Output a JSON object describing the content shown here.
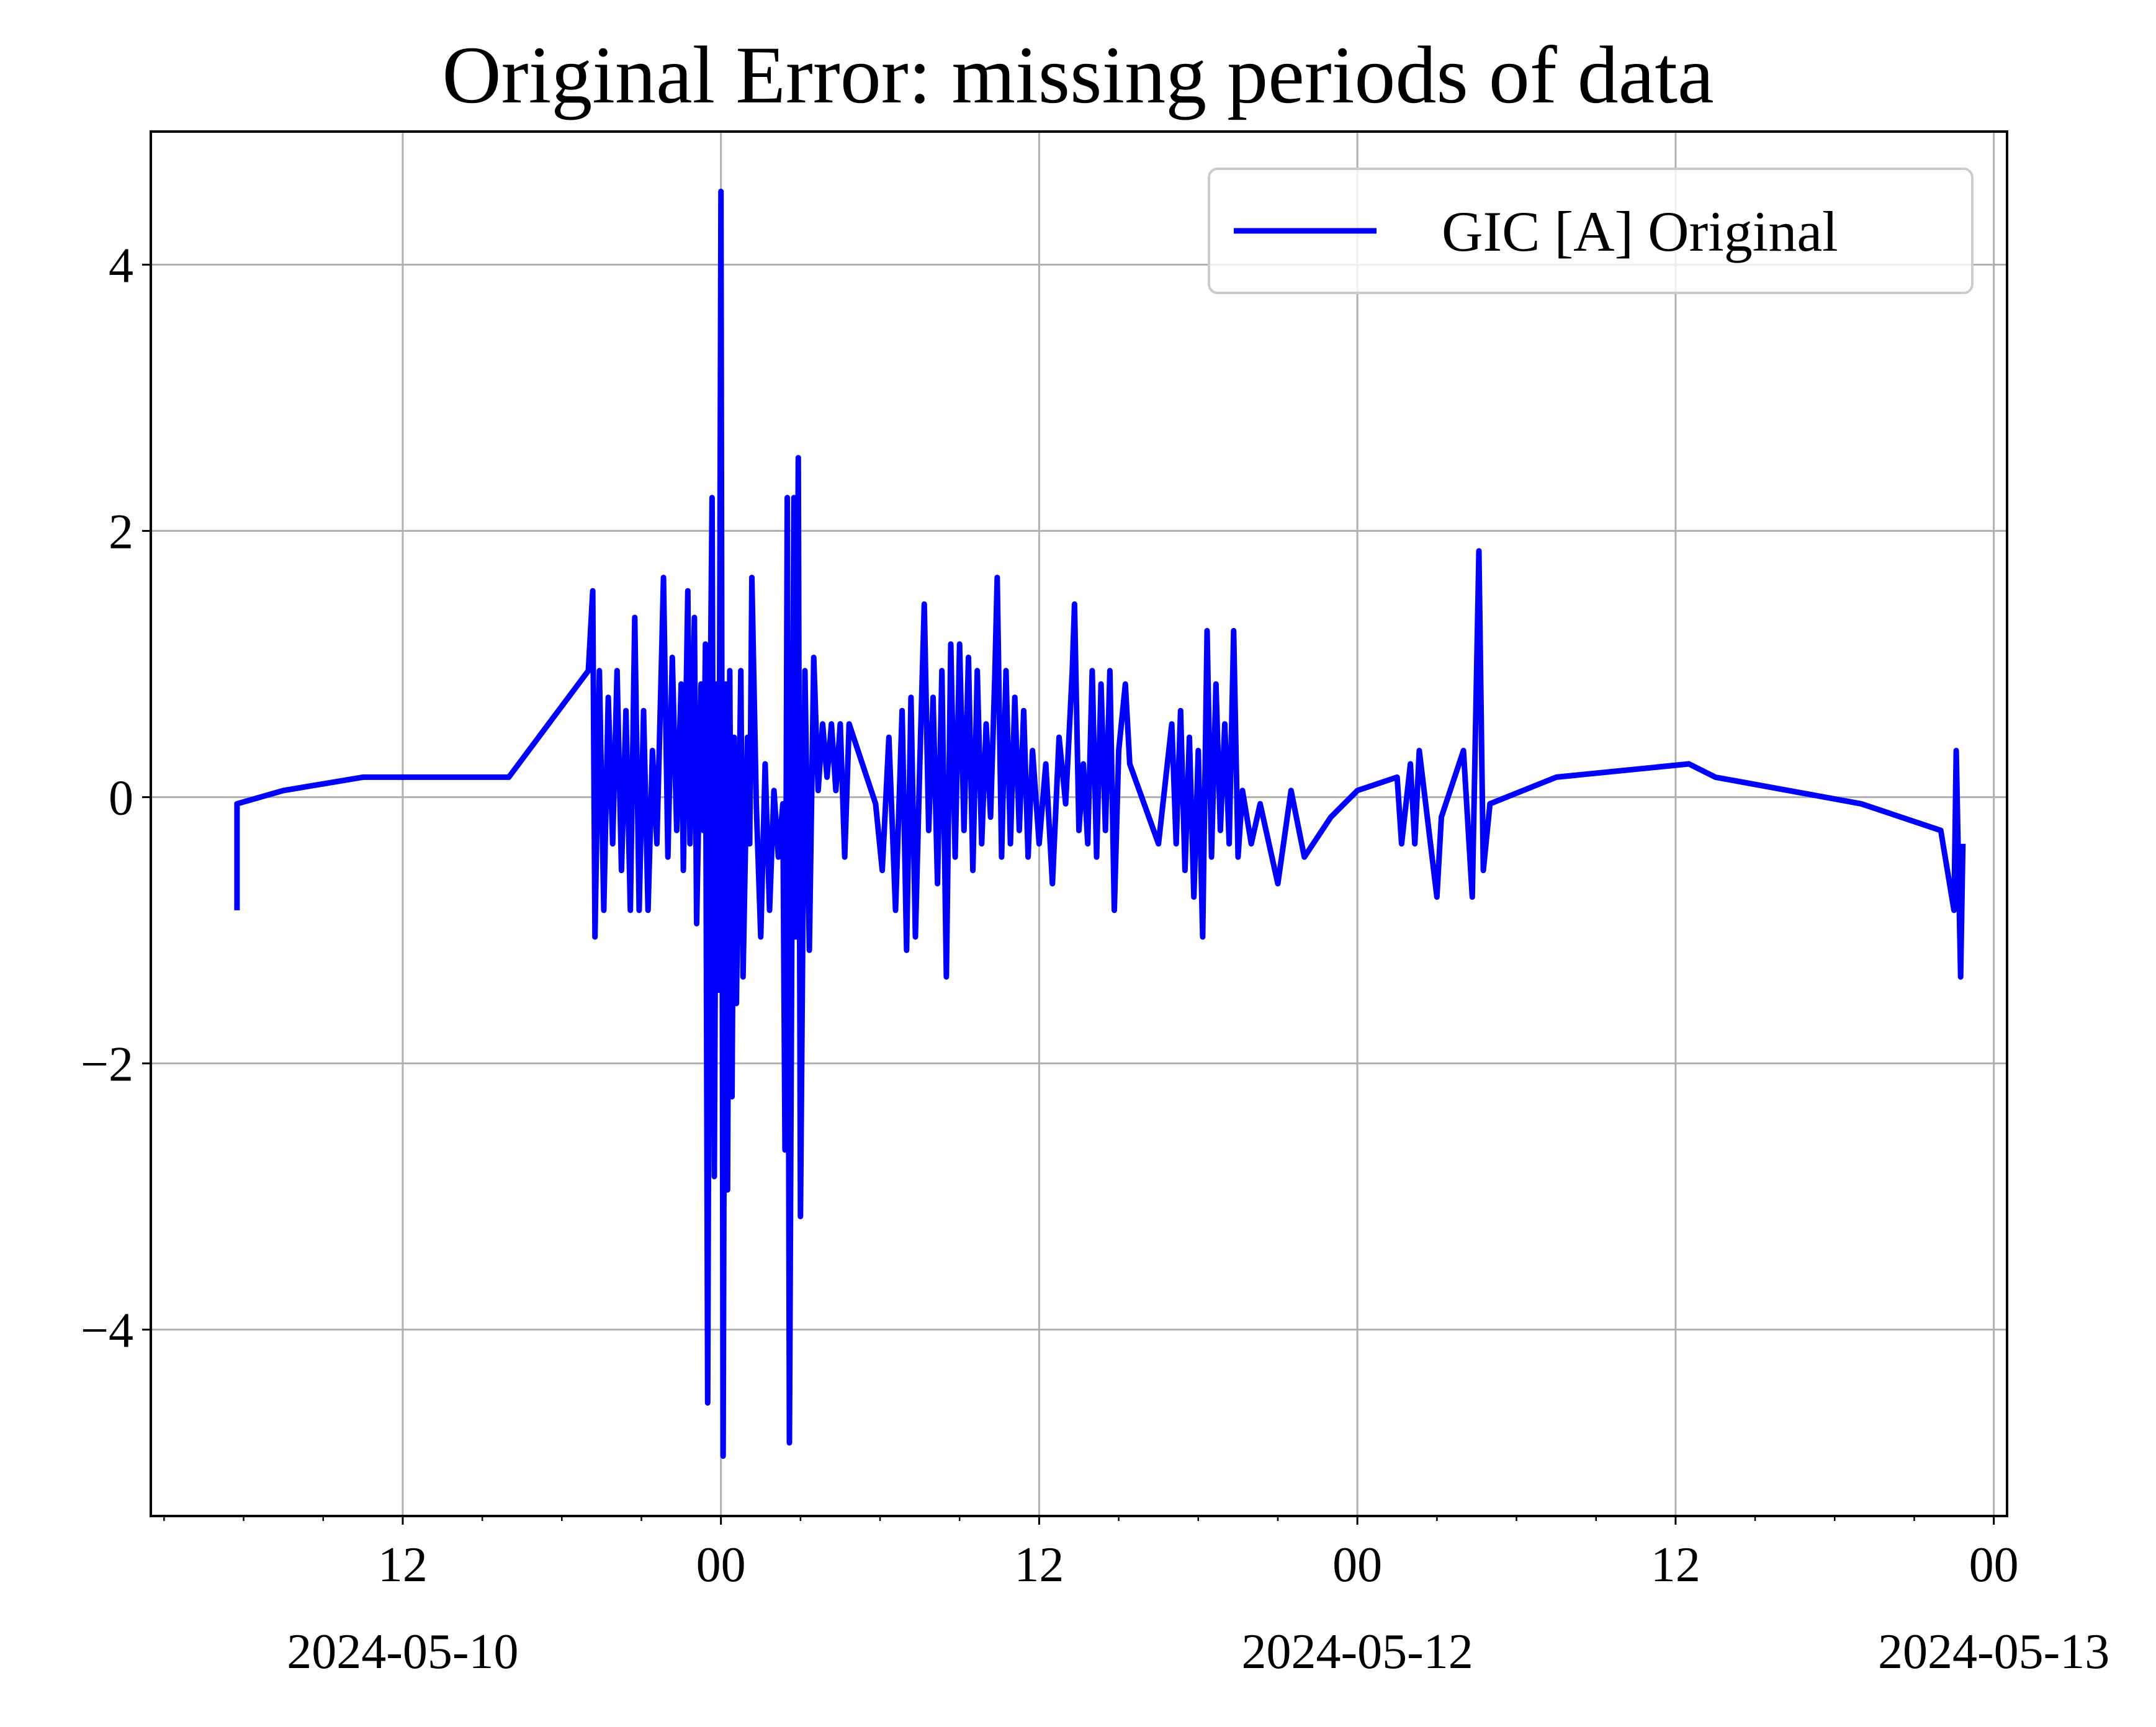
{
  "chart_data": {
    "type": "line",
    "title": "Original Error: missing periods of data",
    "xlabel": "",
    "ylabel": "",
    "x_scale": "time",
    "xlim": [
      "2024-05-10 02:30",
      "2024-05-13 00:30"
    ],
    "ylim": [
      -5.4,
      5.0
    ],
    "grid": true,
    "legend": {
      "placement": "top-right",
      "entries": [
        "GIC [A] Original"
      ]
    },
    "x_ticks": [
      {
        "t": "2024-05-10 12:00",
        "label": "12",
        "date_label": "2024-05-10"
      },
      {
        "t": "2024-05-11 00:00",
        "label": "00",
        "date_label": ""
      },
      {
        "t": "2024-05-11 12:00",
        "label": "12",
        "date_label": ""
      },
      {
        "t": "2024-05-12 00:00",
        "label": "00",
        "date_label": "2024-05-12"
      },
      {
        "t": "2024-05-12 12:00",
        "label": "12",
        "date_label": ""
      },
      {
        "t": "2024-05-13 00:00",
        "label": "00",
        "date_label": "2024-05-13"
      }
    ],
    "y_ticks": [
      {
        "v": -4,
        "label": "−4"
      },
      {
        "v": -2,
        "label": "−2"
      },
      {
        "v": 0,
        "label": "0"
      },
      {
        "v": 2,
        "label": "2"
      },
      {
        "v": 4,
        "label": "4"
      }
    ],
    "series": [
      {
        "name": "GIC [A] Original",
        "color": "#0000ff",
        "points": [
          [
            "2024-05-10 05:45",
            -0.85
          ],
          [
            "2024-05-10 05:45",
            -0.05
          ],
          [
            "2024-05-10 07:30",
            0.05
          ],
          [
            "2024-05-10 10:30",
            0.15
          ],
          [
            "2024-05-10 16:00",
            0.15
          ],
          [
            "2024-05-10 19:00",
            0.95
          ],
          [
            "2024-05-10 19:10",
            1.55
          ],
          [
            "2024-05-10 19:15",
            -1.05
          ],
          [
            "2024-05-10 19:25",
            0.95
          ],
          [
            "2024-05-10 19:35",
            -0.85
          ],
          [
            "2024-05-10 19:45",
            0.75
          ],
          [
            "2024-05-10 19:55",
            -0.35
          ],
          [
            "2024-05-10 20:05",
            0.95
          ],
          [
            "2024-05-10 20:15",
            -0.55
          ],
          [
            "2024-05-10 20:25",
            0.65
          ],
          [
            "2024-05-10 20:35",
            -0.85
          ],
          [
            "2024-05-10 20:45",
            1.35
          ],
          [
            "2024-05-10 20:55",
            -0.85
          ],
          [
            "2024-05-10 21:05",
            0.65
          ],
          [
            "2024-05-10 21:15",
            -0.85
          ],
          [
            "2024-05-10 21:25",
            0.35
          ],
          [
            "2024-05-10 21:35",
            -0.35
          ],
          [
            "2024-05-10 21:45",
            0.95
          ],
          [
            "2024-05-10 21:50",
            1.65
          ],
          [
            "2024-05-10 22:00",
            -0.45
          ],
          [
            "2024-05-10 22:10",
            1.05
          ],
          [
            "2024-05-10 22:20",
            -0.25
          ],
          [
            "2024-05-10 22:30",
            0.85
          ],
          [
            "2024-05-10 22:35",
            -0.55
          ],
          [
            "2024-05-10 22:45",
            1.55
          ],
          [
            "2024-05-10 22:50",
            -0.35
          ],
          [
            "2024-05-10 23:00",
            1.35
          ],
          [
            "2024-05-10 23:05",
            -0.95
          ],
          [
            "2024-05-10 23:15",
            0.85
          ],
          [
            "2024-05-10 23:20",
            -0.25
          ],
          [
            "2024-05-10 23:25",
            1.15
          ],
          [
            "2024-05-10 23:30",
            -4.55
          ],
          [
            "2024-05-10 23:35",
            0.45
          ],
          [
            "2024-05-10 23:40",
            2.25
          ],
          [
            "2024-05-10 23:45",
            -2.85
          ],
          [
            "2024-05-10 23:50",
            0.85
          ],
          [
            "2024-05-10 23:55",
            -1.45
          ],
          [
            "2024-05-11 00:00",
            4.55
          ],
          [
            "2024-05-11 00:05",
            -4.95
          ],
          [
            "2024-05-11 00:10",
            0.85
          ],
          [
            "2024-05-11 00:15",
            -2.95
          ],
          [
            "2024-05-11 00:20",
            0.95
          ],
          [
            "2024-05-11 00:25",
            -2.25
          ],
          [
            "2024-05-11 00:30",
            0.45
          ],
          [
            "2024-05-11 00:35",
            -1.55
          ],
          [
            "2024-05-11 00:45",
            0.95
          ],
          [
            "2024-05-11 00:50",
            -1.35
          ],
          [
            "2024-05-11 01:00",
            0.45
          ],
          [
            "2024-05-11 01:05",
            -0.35
          ],
          [
            "2024-05-11 01:10",
            1.65
          ],
          [
            "2024-05-11 01:20",
            -0.05
          ],
          [
            "2024-05-11 01:30",
            -1.05
          ],
          [
            "2024-05-11 01:40",
            0.25
          ],
          [
            "2024-05-11 01:50",
            -0.85
          ],
          [
            "2024-05-11 02:00",
            0.05
          ],
          [
            "2024-05-11 02:10",
            -0.45
          ],
          [
            "2024-05-11 02:20",
            -0.05
          ],
          [
            "2024-05-11 02:25",
            -2.65
          ],
          [
            "2024-05-11 02:30",
            2.25
          ],
          [
            "2024-05-11 02:35",
            -4.85
          ],
          [
            "2024-05-11 02:45",
            2.25
          ],
          [
            "2024-05-11 02:50",
            -1.05
          ],
          [
            "2024-05-11 02:55",
            2.55
          ],
          [
            "2024-05-11 03:00",
            -3.15
          ],
          [
            "2024-05-11 03:10",
            0.95
          ],
          [
            "2024-05-11 03:20",
            -1.15
          ],
          [
            "2024-05-11 03:30",
            1.05
          ],
          [
            "2024-05-11 03:40",
            0.05
          ],
          [
            "2024-05-11 03:50",
            0.55
          ],
          [
            "2024-05-11 04:00",
            0.15
          ],
          [
            "2024-05-11 04:10",
            0.55
          ],
          [
            "2024-05-11 04:20",
            0.05
          ],
          [
            "2024-05-11 04:30",
            0.55
          ],
          [
            "2024-05-11 04:40",
            -0.45
          ],
          [
            "2024-05-11 04:50",
            0.55
          ],
          [
            "2024-05-11 05:50",
            -0.05
          ],
          [
            "2024-05-11 06:05",
            -0.55
          ],
          [
            "2024-05-11 06:20",
            0.45
          ],
          [
            "2024-05-11 06:35",
            -0.85
          ],
          [
            "2024-05-11 06:50",
            0.65
          ],
          [
            "2024-05-11 07:00",
            -1.15
          ],
          [
            "2024-05-11 07:10",
            0.75
          ],
          [
            "2024-05-11 07:20",
            -1.05
          ],
          [
            "2024-05-11 07:30",
            0.25
          ],
          [
            "2024-05-11 07:40",
            1.45
          ],
          [
            "2024-05-11 07:50",
            -0.25
          ],
          [
            "2024-05-11 08:00",
            0.75
          ],
          [
            "2024-05-11 08:10",
            -0.65
          ],
          [
            "2024-05-11 08:20",
            0.95
          ],
          [
            "2024-05-11 08:30",
            -1.35
          ],
          [
            "2024-05-11 08:40",
            1.15
          ],
          [
            "2024-05-11 08:50",
            -0.45
          ],
          [
            "2024-05-11 09:00",
            1.15
          ],
          [
            "2024-05-11 09:10",
            -0.25
          ],
          [
            "2024-05-11 09:20",
            1.05
          ],
          [
            "2024-05-11 09:30",
            -0.55
          ],
          [
            "2024-05-11 09:40",
            0.95
          ],
          [
            "2024-05-11 09:50",
            -0.35
          ],
          [
            "2024-05-11 10:00",
            0.55
          ],
          [
            "2024-05-11 10:10",
            -0.15
          ],
          [
            "2024-05-11 10:20",
            0.95
          ],
          [
            "2024-05-11 10:25",
            1.65
          ],
          [
            "2024-05-11 10:35",
            -0.45
          ],
          [
            "2024-05-11 10:45",
            0.95
          ],
          [
            "2024-05-11 10:55",
            -0.35
          ],
          [
            "2024-05-11 11:05",
            0.75
          ],
          [
            "2024-05-11 11:15",
            -0.25
          ],
          [
            "2024-05-11 11:25",
            0.65
          ],
          [
            "2024-05-11 11:35",
            -0.45
          ],
          [
            "2024-05-11 11:45",
            0.35
          ],
          [
            "2024-05-11 12:00",
            -0.35
          ],
          [
            "2024-05-11 12:15",
            0.25
          ],
          [
            "2024-05-11 12:30",
            -0.65
          ],
          [
            "2024-05-11 12:45",
            0.45
          ],
          [
            "2024-05-11 13:00",
            -0.05
          ],
          [
            "2024-05-11 13:15",
            0.95
          ],
          [
            "2024-05-11 13:20",
            1.45
          ],
          [
            "2024-05-11 13:30",
            -0.25
          ],
          [
            "2024-05-11 13:40",
            0.25
          ],
          [
            "2024-05-11 13:50",
            -0.35
          ],
          [
            "2024-05-11 14:00",
            0.95
          ],
          [
            "2024-05-11 14:10",
            -0.45
          ],
          [
            "2024-05-11 14:20",
            0.85
          ],
          [
            "2024-05-11 14:30",
            -0.25
          ],
          [
            "2024-05-11 14:40",
            0.95
          ],
          [
            "2024-05-11 14:50",
            -0.85
          ],
          [
            "2024-05-11 15:00",
            0.35
          ],
          [
            "2024-05-11 15:15",
            0.85
          ],
          [
            "2024-05-11 15:25",
            0.25
          ],
          [
            "2024-05-11 16:30",
            -0.35
          ],
          [
            "2024-05-11 17:00",
            0.55
          ],
          [
            "2024-05-11 17:10",
            -0.35
          ],
          [
            "2024-05-11 17:20",
            0.65
          ],
          [
            "2024-05-11 17:30",
            -0.55
          ],
          [
            "2024-05-11 17:40",
            0.45
          ],
          [
            "2024-05-11 17:50",
            -0.75
          ],
          [
            "2024-05-11 18:00",
            0.35
          ],
          [
            "2024-05-11 18:10",
            -1.05
          ],
          [
            "2024-05-11 18:20",
            1.25
          ],
          [
            "2024-05-11 18:30",
            -0.45
          ],
          [
            "2024-05-11 18:40",
            0.85
          ],
          [
            "2024-05-11 18:50",
            -0.25
          ],
          [
            "2024-05-11 19:00",
            0.55
          ],
          [
            "2024-05-11 19:10",
            -0.35
          ],
          [
            "2024-05-11 19:20",
            1.25
          ],
          [
            "2024-05-11 19:30",
            -0.45
          ],
          [
            "2024-05-11 19:40",
            0.05
          ],
          [
            "2024-05-11 20:00",
            -0.35
          ],
          [
            "2024-05-11 20:20",
            -0.05
          ],
          [
            "2024-05-11 21:00",
            -0.65
          ],
          [
            "2024-05-11 21:30",
            0.05
          ],
          [
            "2024-05-11 22:00",
            -0.45
          ],
          [
            "2024-05-11 23:00",
            -0.15
          ],
          [
            "2024-05-12 00:00",
            0.05
          ],
          [
            "2024-05-12 01:30",
            0.15
          ],
          [
            "2024-05-12 01:40",
            -0.35
          ],
          [
            "2024-05-12 02:00",
            0.25
          ],
          [
            "2024-05-12 02:10",
            -0.35
          ],
          [
            "2024-05-12 02:20",
            0.35
          ],
          [
            "2024-05-12 03:00",
            -0.75
          ],
          [
            "2024-05-12 03:10",
            -0.15
          ],
          [
            "2024-05-12 04:00",
            0.35
          ],
          [
            "2024-05-12 04:20",
            -0.75
          ],
          [
            "2024-05-12 04:35",
            1.85
          ],
          [
            "2024-05-12 04:45",
            -0.55
          ],
          [
            "2024-05-12 05:00",
            -0.05
          ],
          [
            "2024-05-12 07:30",
            0.15
          ],
          [
            "2024-05-12 12:30",
            0.25
          ],
          [
            "2024-05-12 13:30",
            0.15
          ],
          [
            "2024-05-12 19:00",
            -0.05
          ],
          [
            "2024-05-12 22:00",
            -0.25
          ],
          [
            "2024-05-12 22:30",
            -0.85
          ],
          [
            "2024-05-12 22:35",
            0.35
          ],
          [
            "2024-05-12 22:45",
            -1.35
          ],
          [
            "2024-05-12 22:50",
            -0.35
          ]
        ]
      }
    ]
  }
}
